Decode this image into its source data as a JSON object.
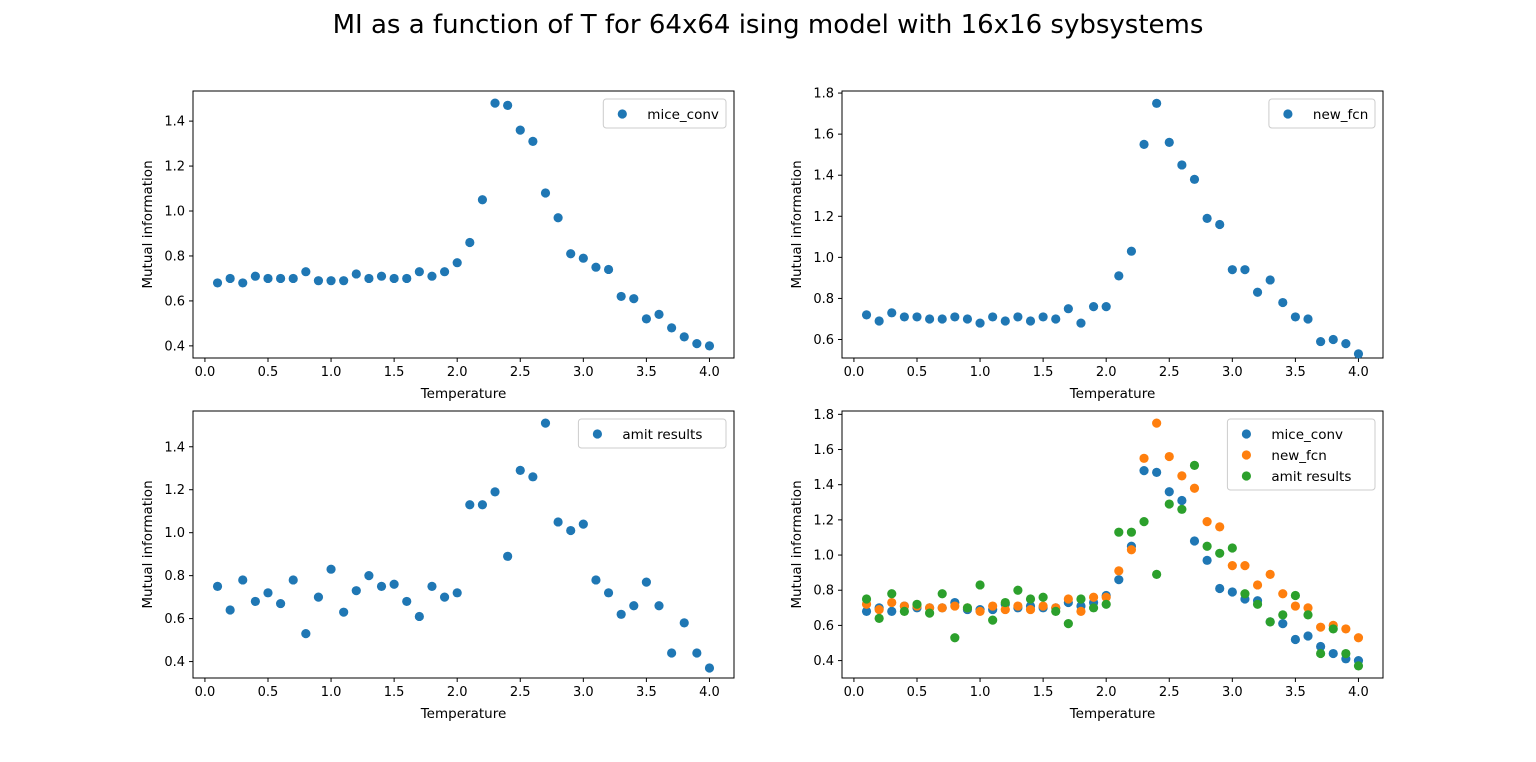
{
  "title": "MI as a function of T for 64x64 ising model with 16x16 sybsystems",
  "colors": {
    "mice_conv": "#1f77b4",
    "new_fcn": "#ff7f0e",
    "amit_results": "#2ca02c"
  },
  "chart_data": [
    {
      "type": "scatter",
      "position": "top-left",
      "xlabel": "Temperature",
      "ylabel": "Mutual information",
      "xlim": [
        -0.0945,
        4.1945
      ],
      "ylim": [
        0.346,
        1.534
      ],
      "xticks": [
        "0.0",
        "0.5",
        "1.0",
        "1.5",
        "2.0",
        "2.5",
        "3.0",
        "3.5",
        "4.0"
      ],
      "yticks": [
        "0.4",
        "0.6",
        "0.8",
        "1.0",
        "1.2",
        "1.4"
      ],
      "legend": "upper right",
      "series": [
        {
          "name": "mice_conv",
          "color": "#1f77b4",
          "x": [
            0.1,
            0.2,
            0.3,
            0.4,
            0.5,
            0.6,
            0.7,
            0.8,
            0.9,
            1.0,
            1.1,
            1.2,
            1.3,
            1.4,
            1.5,
            1.6,
            1.7,
            1.8,
            1.9,
            2.0,
            2.1,
            2.2,
            2.3,
            2.4,
            2.5,
            2.6,
            2.7,
            2.8,
            2.9,
            3.0,
            3.1,
            3.2,
            3.3,
            3.4,
            3.5,
            3.6,
            3.7,
            3.8,
            3.9,
            4.0
          ],
          "y": [
            0.68,
            0.7,
            0.68,
            0.71,
            0.7,
            0.7,
            0.7,
            0.73,
            0.69,
            0.69,
            0.69,
            0.72,
            0.7,
            0.71,
            0.7,
            0.7,
            0.73,
            0.71,
            0.73,
            0.77,
            0.86,
            1.05,
            1.48,
            1.47,
            1.36,
            1.31,
            1.08,
            0.97,
            0.81,
            0.79,
            0.75,
            0.74,
            0.62,
            0.61,
            0.52,
            0.54,
            0.48,
            0.44,
            0.41,
            0.4
          ]
        }
      ]
    },
    {
      "type": "scatter",
      "position": "top-right",
      "xlabel": "Temperature",
      "ylabel": "Mutual information",
      "xlim": [
        -0.0945,
        4.1945
      ],
      "ylim": [
        0.51,
        1.81
      ],
      "xticks": [
        "0.0",
        "0.5",
        "1.0",
        "1.5",
        "2.0",
        "2.5",
        "3.0",
        "3.5",
        "4.0"
      ],
      "yticks": [
        "0.6",
        "0.8",
        "1.0",
        "1.2",
        "1.4",
        "1.6",
        "1.8"
      ],
      "legend": "upper right",
      "series": [
        {
          "name": "new_fcn",
          "color": "#1f77b4",
          "x": [
            0.1,
            0.2,
            0.3,
            0.4,
            0.5,
            0.6,
            0.7,
            0.8,
            0.9,
            1.0,
            1.1,
            1.2,
            1.3,
            1.4,
            1.5,
            1.6,
            1.7,
            1.8,
            1.9,
            2.0,
            2.1,
            2.2,
            2.3,
            2.4,
            2.5,
            2.6,
            2.7,
            2.8,
            2.9,
            3.0,
            3.1,
            3.2,
            3.3,
            3.4,
            3.5,
            3.6,
            3.7,
            3.8,
            3.9,
            4.0
          ],
          "y": [
            0.72,
            0.69,
            0.73,
            0.71,
            0.71,
            0.7,
            0.7,
            0.71,
            0.7,
            0.68,
            0.71,
            0.69,
            0.71,
            0.69,
            0.71,
            0.7,
            0.75,
            0.68,
            0.76,
            0.76,
            0.91,
            1.03,
            1.55,
            1.75,
            1.56,
            1.45,
            1.38,
            1.19,
            1.16,
            0.94,
            0.94,
            0.83,
            0.89,
            0.78,
            0.71,
            0.7,
            0.59,
            0.6,
            0.58,
            0.53
          ]
        }
      ]
    },
    {
      "type": "scatter",
      "position": "bottom-left",
      "xlabel": "Temperature",
      "ylabel": "Mutual information",
      "xlim": [
        -0.0945,
        4.1945
      ],
      "ylim": [
        0.3235,
        1.5665
      ],
      "xticks": [
        "0.0",
        "0.5",
        "1.0",
        "1.5",
        "2.0",
        "2.5",
        "3.0",
        "3.5",
        "4.0"
      ],
      "yticks": [
        "0.4",
        "0.6",
        "0.8",
        "1.0",
        "1.2",
        "1.4"
      ],
      "legend": "upper right",
      "series": [
        {
          "name": "amit results",
          "color": "#1f77b4",
          "x": [
            0.1,
            0.2,
            0.3,
            0.4,
            0.5,
            0.6,
            0.7,
            0.8,
            0.9,
            1.0,
            1.1,
            1.2,
            1.3,
            1.4,
            1.5,
            1.6,
            1.7,
            1.8,
            1.9,
            2.0,
            2.1,
            2.2,
            2.3,
            2.4,
            2.5,
            2.6,
            2.7,
            2.8,
            2.9,
            3.0,
            3.1,
            3.2,
            3.3,
            3.4,
            3.5,
            3.6,
            3.7,
            3.8,
            3.9,
            4.0
          ],
          "y": [
            0.75,
            0.64,
            0.78,
            0.68,
            0.72,
            0.67,
            0.78,
            0.53,
            0.7,
            0.83,
            0.63,
            0.73,
            0.8,
            0.75,
            0.76,
            0.68,
            0.61,
            0.75,
            0.7,
            0.72,
            1.13,
            1.13,
            1.19,
            0.89,
            1.29,
            1.26,
            1.51,
            1.05,
            1.01,
            1.04,
            0.78,
            0.72,
            0.62,
            0.66,
            0.77,
            0.66,
            0.44,
            0.58,
            0.44,
            0.37
          ]
        }
      ]
    },
    {
      "type": "scatter",
      "position": "bottom-right",
      "xlabel": "Temperature",
      "ylabel": "Mutual information",
      "xlim": [
        -0.0945,
        4.1945
      ],
      "ylim": [
        0.301,
        1.819
      ],
      "xticks": [
        "0.0",
        "0.5",
        "1.0",
        "1.5",
        "2.0",
        "2.5",
        "3.0",
        "3.5",
        "4.0"
      ],
      "yticks": [
        "0.4",
        "0.6",
        "0.8",
        "1.0",
        "1.2",
        "1.4",
        "1.6",
        "1.8"
      ],
      "legend": "upper right",
      "series": [
        {
          "name": "mice_conv",
          "color": "#1f77b4",
          "x": [
            0.1,
            0.2,
            0.3,
            0.4,
            0.5,
            0.6,
            0.7,
            0.8,
            0.9,
            1.0,
            1.1,
            1.2,
            1.3,
            1.4,
            1.5,
            1.6,
            1.7,
            1.8,
            1.9,
            2.0,
            2.1,
            2.2,
            2.3,
            2.4,
            2.5,
            2.6,
            2.7,
            2.8,
            2.9,
            3.0,
            3.1,
            3.2,
            3.3,
            3.4,
            3.5,
            3.6,
            3.7,
            3.8,
            3.9,
            4.0
          ],
          "y": [
            0.68,
            0.7,
            0.68,
            0.71,
            0.7,
            0.7,
            0.7,
            0.73,
            0.69,
            0.69,
            0.69,
            0.72,
            0.7,
            0.71,
            0.7,
            0.7,
            0.73,
            0.71,
            0.73,
            0.77,
            0.86,
            1.05,
            1.48,
            1.47,
            1.36,
            1.31,
            1.08,
            0.97,
            0.81,
            0.79,
            0.75,
            0.74,
            0.62,
            0.61,
            0.52,
            0.54,
            0.48,
            0.44,
            0.41,
            0.4
          ]
        },
        {
          "name": "new_fcn",
          "color": "#ff7f0e",
          "x": [
            0.1,
            0.2,
            0.3,
            0.4,
            0.5,
            0.6,
            0.7,
            0.8,
            0.9,
            1.0,
            1.1,
            1.2,
            1.3,
            1.4,
            1.5,
            1.6,
            1.7,
            1.8,
            1.9,
            2.0,
            2.1,
            2.2,
            2.3,
            2.4,
            2.5,
            2.6,
            2.7,
            2.8,
            2.9,
            3.0,
            3.1,
            3.2,
            3.3,
            3.4,
            3.5,
            3.6,
            3.7,
            3.8,
            3.9,
            4.0
          ],
          "y": [
            0.72,
            0.69,
            0.73,
            0.71,
            0.71,
            0.7,
            0.7,
            0.71,
            0.7,
            0.68,
            0.71,
            0.69,
            0.71,
            0.69,
            0.71,
            0.7,
            0.75,
            0.68,
            0.76,
            0.76,
            0.91,
            1.03,
            1.55,
            1.75,
            1.56,
            1.45,
            1.38,
            1.19,
            1.16,
            0.94,
            0.94,
            0.83,
            0.89,
            0.78,
            0.71,
            0.7,
            0.59,
            0.6,
            0.58,
            0.53
          ]
        },
        {
          "name": "amit results",
          "color": "#2ca02c",
          "x": [
            0.1,
            0.2,
            0.3,
            0.4,
            0.5,
            0.6,
            0.7,
            0.8,
            0.9,
            1.0,
            1.1,
            1.2,
            1.3,
            1.4,
            1.5,
            1.6,
            1.7,
            1.8,
            1.9,
            2.0,
            2.1,
            2.2,
            2.3,
            2.4,
            2.5,
            2.6,
            2.7,
            2.8,
            2.9,
            3.0,
            3.1,
            3.2,
            3.3,
            3.4,
            3.5,
            3.6,
            3.7,
            3.8,
            3.9,
            4.0
          ],
          "y": [
            0.75,
            0.64,
            0.78,
            0.68,
            0.72,
            0.67,
            0.78,
            0.53,
            0.7,
            0.83,
            0.63,
            0.73,
            0.8,
            0.75,
            0.76,
            0.68,
            0.61,
            0.75,
            0.7,
            0.72,
            1.13,
            1.13,
            1.19,
            0.89,
            1.29,
            1.26,
            1.51,
            1.05,
            1.01,
            1.04,
            0.78,
            0.72,
            0.62,
            0.66,
            0.77,
            0.66,
            0.44,
            0.58,
            0.44,
            0.37
          ]
        }
      ]
    }
  ]
}
